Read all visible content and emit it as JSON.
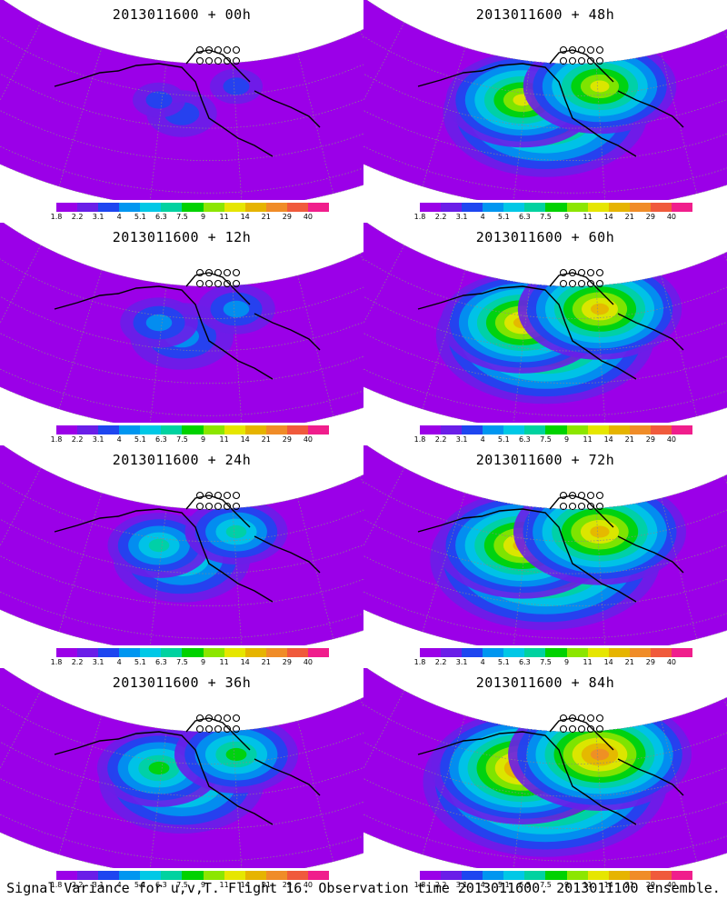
{
  "panels": [
    {
      "title": "2013011600 + 00h",
      "level": 0.15
    },
    {
      "title": "2013011600 + 48h",
      "level": 0.72
    },
    {
      "title": "2013011600 + 12h",
      "level": 0.3
    },
    {
      "title": "2013011600 + 60h",
      "level": 0.78
    },
    {
      "title": "2013011600 + 24h",
      "level": 0.42
    },
    {
      "title": "2013011600 + 72h",
      "level": 0.84
    },
    {
      "title": "2013011600 + 36h",
      "level": 0.55
    },
    {
      "title": "2013011600 + 84h",
      "level": 0.9
    }
  ],
  "colorbar": {
    "labels": [
      "1.8",
      "2.2",
      "3.1",
      "4",
      "5.1",
      "6.3",
      "7.5",
      "9",
      "11",
      "14",
      "21",
      "29",
      "40"
    ],
    "colors": [
      "#9b00e8",
      "#6a1ee8",
      "#1e46f0",
      "#0096f0",
      "#00c8e6",
      "#00d2a0",
      "#00d200",
      "#8ce600",
      "#e6e600",
      "#e6b400",
      "#f08c28",
      "#f05a3c",
      "#f01e8c"
    ]
  },
  "caption": "Signal Variance for u,v,T. Flight 16. Observation time 2013011600. 2013011100 ensemble."
}
